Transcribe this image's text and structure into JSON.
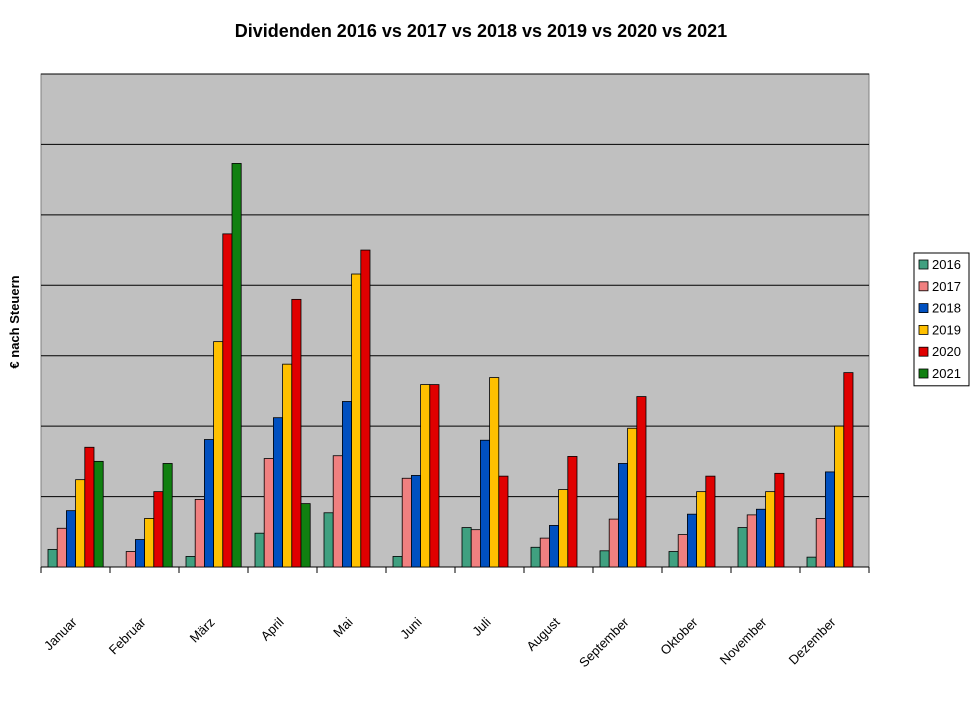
{
  "chart_data": {
    "type": "bar",
    "title": "Dividenden 2016 vs 2017 vs 2018 vs 2019 vs 2020 vs 2021",
    "xlabel": "",
    "ylabel": "€ nach Steuern",
    "ylim": [
      0,
      7
    ],
    "y_gridlines": [
      1,
      2,
      3,
      4,
      5,
      6,
      7
    ],
    "y_tick_labels_shown": false,
    "grid": true,
    "legend_position": "right",
    "plot_background": "#c0c0c0",
    "categories": [
      "Januar",
      "Februar",
      "März",
      "April",
      "Mai",
      "Juni",
      "Juli",
      "August",
      "September",
      "Oktober",
      "November",
      "Dezember"
    ],
    "series": [
      {
        "name": "2016",
        "color": "#40a080",
        "values": [
          0.25,
          0,
          0.15,
          0.48,
          0.77,
          0.15,
          0.56,
          0.28,
          0.23,
          0.22,
          0.56,
          0.14
        ]
      },
      {
        "name": "2017",
        "color": "#f08080",
        "values": [
          0.55,
          0.22,
          0.96,
          1.54,
          1.58,
          1.26,
          0.53,
          0.41,
          0.68,
          0.46,
          0.74,
          0.69
        ]
      },
      {
        "name": "2018",
        "color": "#0050c0",
        "values": [
          0.8,
          0.39,
          1.81,
          2.12,
          2.35,
          1.3,
          1.8,
          0.59,
          1.47,
          0.75,
          0.82,
          1.35
        ]
      },
      {
        "name": "2019",
        "color": "#ffc000",
        "values": [
          1.24,
          0.69,
          3.2,
          2.88,
          4.16,
          2.59,
          2.69,
          1.1,
          1.97,
          1.07,
          1.07,
          2.0
        ]
      },
      {
        "name": "2020",
        "color": "#e00000",
        "values": [
          1.7,
          1.07,
          4.73,
          3.8,
          4.5,
          2.59,
          1.29,
          1.57,
          2.42,
          1.29,
          1.33,
          2.76
        ]
      },
      {
        "name": "2021",
        "color": "#108010",
        "values": [
          1.5,
          1.47,
          5.73,
          0.9,
          0,
          0,
          0,
          0,
          0,
          0,
          0,
          0
        ]
      }
    ]
  }
}
